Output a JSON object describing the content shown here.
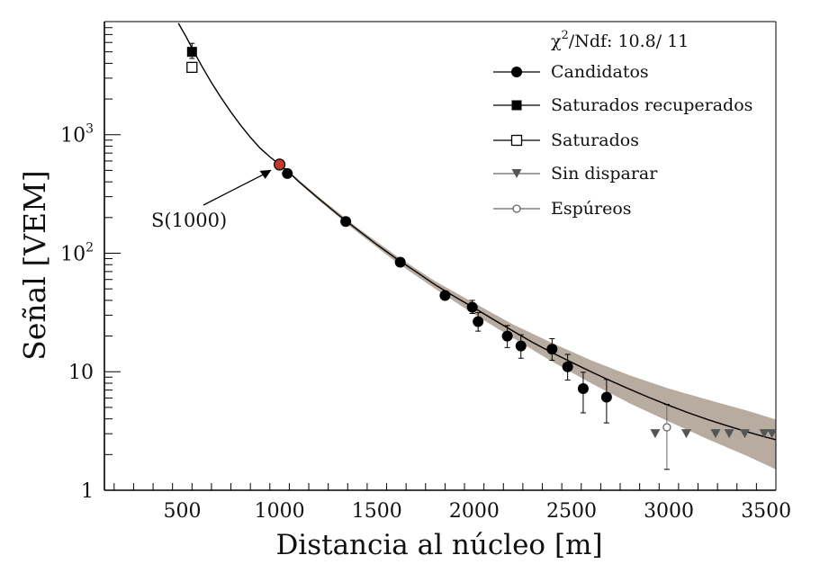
{
  "chart_data": {
    "type": "scatter",
    "xlabel": "Distancia al núcleo [m]",
    "ylabel": "Señal [VEM]",
    "xlim": [
      100,
      3550
    ],
    "ylim": [
      1,
      9000
    ],
    "yscale": "log",
    "x_ticks": [
      "500",
      "1000",
      "1500",
      "2000",
      "2500",
      "3000",
      "3500"
    ],
    "y_ticks": [
      {
        "value": 1,
        "base": "1",
        "exp": ""
      },
      {
        "value": 10,
        "base": "10",
        "exp": ""
      },
      {
        "value": 100,
        "base": "10",
        "exp": "2"
      },
      {
        "value": 1000,
        "base": "10",
        "exp": "3"
      }
    ],
    "fit_label": {
      "chi": "χ",
      "sup": "2",
      "rest": "/Ndf: 10.8/ 11"
    },
    "annotation": {
      "text": "S(1000)",
      "x": 1000,
      "y": 560
    },
    "fit_curve": {
      "x": [
        480,
        520,
        560,
        600,
        650,
        700,
        750,
        800,
        850,
        900,
        950,
        1000,
        1050,
        1100,
        1200,
        1300,
        1400,
        1500,
        1600,
        1700,
        1800,
        1900,
        2000,
        2100,
        2200,
        2300,
        2400,
        2500,
        2600,
        2700,
        2800,
        2900,
        3000,
        3100,
        3200,
        3300,
        3400,
        3500,
        3550
      ],
      "y": [
        8700,
        6700,
        5000,
        3800,
        2750,
        2050,
        1550,
        1200,
        950,
        770,
        650,
        560,
        480,
        400,
        290,
        212,
        158,
        118,
        90,
        70,
        54,
        43,
        34.5,
        27.5,
        22,
        17.7,
        14.5,
        12,
        10,
        8.4,
        7.1,
        6.05,
        5.2,
        4.5,
        3.95,
        3.5,
        3.12,
        2.8,
        2.67
      ]
    },
    "band_upper": {
      "x": [
        1000,
        1200,
        1400,
        1600,
        1800,
        2000,
        2200,
        2400,
        2600,
        2800,
        3000,
        3200,
        3400,
        3550
      ],
      "y": [
        570,
        300,
        164,
        95,
        58,
        38,
        25,
        17.5,
        12.5,
        9.3,
        7.2,
        5.8,
        4.7,
        3.95
      ]
    },
    "band_lower": {
      "x": [
        1000,
        1200,
        1400,
        1600,
        1800,
        2000,
        2200,
        2400,
        2600,
        2800,
        3000,
        3200,
        3400,
        3550
      ],
      "y": [
        550,
        280,
        150,
        84,
        50,
        30.5,
        19.2,
        12.2,
        8,
        5.4,
        3.8,
        2.7,
        1.95,
        1.5
      ]
    },
    "series": [
      {
        "name": "Candidatos",
        "marker": "filled-circle",
        "x": [
          1000,
          1040,
          1340,
          1620,
          1850,
          1990,
          2020,
          2170,
          2240,
          2400,
          2480,
          2560,
          2680
        ],
        "y": [
          560,
          470,
          185,
          84,
          44,
          35,
          26.5,
          20,
          16.5,
          15.5,
          11,
          7.2,
          6.1
        ],
        "err_low": [
          0,
          0,
          0,
          0,
          3,
          4,
          4.5,
          4,
          3.5,
          3,
          2.5,
          2.7,
          2.4
        ],
        "err_high": [
          0,
          0,
          0,
          0,
          4,
          5,
          5,
          4.5,
          4,
          3.5,
          3,
          2.7,
          2.5
        ]
      },
      {
        "name": "Saturados recuperados",
        "marker": "filled-square",
        "x": [
          550
        ],
        "y": [
          5000
        ],
        "err_low": [
          600
        ],
        "err_high": [
          900
        ]
      },
      {
        "name": "Saturados",
        "marker": "open-square",
        "x": [
          550
        ],
        "y": [
          3700
        ],
        "err_low": [
          0
        ],
        "err_high": [
          0
        ]
      },
      {
        "name": "Sin disparar",
        "marker": "filled-triangle-down",
        "x": [
          2930,
          3090,
          3240,
          3310,
          3390,
          3490,
          3530
        ],
        "y": [
          3,
          3,
          3,
          3,
          3,
          3,
          3
        ]
      },
      {
        "name": "Espúreos",
        "marker": "open-circle",
        "x": [
          2990
        ],
        "y": [
          3.4
        ],
        "err_low": [
          1.9
        ],
        "err_high": [
          1.9
        ]
      }
    ],
    "legend_position": "top-right",
    "colors": {
      "axis": "#000000",
      "band": "#b8aba0",
      "sin_disparar": "#555555",
      "espureos": "#666666",
      "s1000_marker": "#c0392b"
    }
  }
}
